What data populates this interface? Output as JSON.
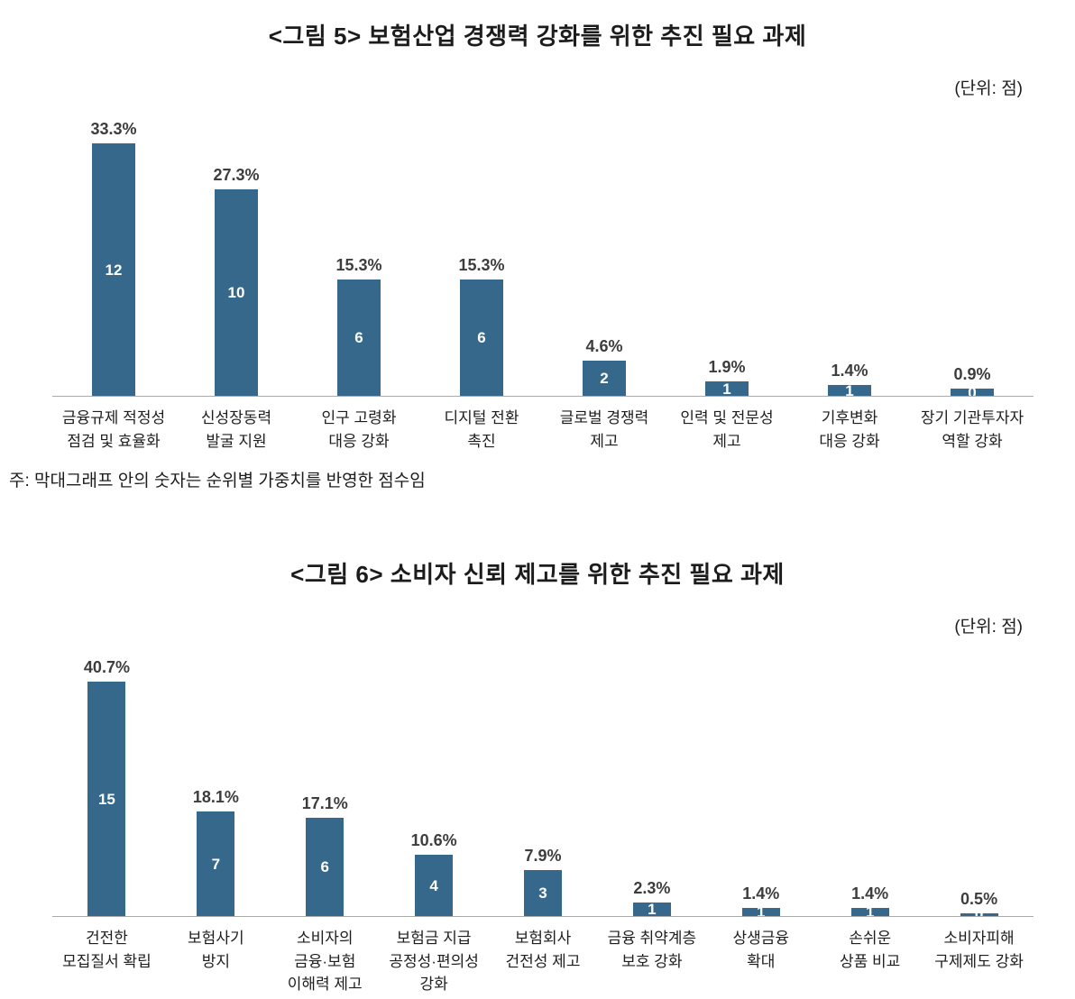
{
  "colors": {
    "bar": "#36688c",
    "axis": "#aaaaaa"
  },
  "chart_data": [
    {
      "type": "bar",
      "title": "<그림 5> 보험산업 경쟁력 강화를 위한 추진 필요 과제",
      "unit_label": "(단위: 점)",
      "note": "주: 막대그래프 안의 숫자는 순위별 가중치를 반영한 점수임",
      "xlabel": "",
      "ylabel": "",
      "grid": false,
      "legend": false,
      "value_unit": "percent",
      "bars": [
        {
          "category": "금융규제 적정성\n점검 및 효율화",
          "percent": 33.3,
          "pct_label": "33.3%",
          "score": "12"
        },
        {
          "category": "신성장동력\n발굴 지원",
          "percent": 27.3,
          "pct_label": "27.3%",
          "score": "10"
        },
        {
          "category": "인구 고령화\n대응 강화",
          "percent": 15.3,
          "pct_label": "15.3%",
          "score": "6"
        },
        {
          "category": "디지털 전환\n촉진",
          "percent": 15.3,
          "pct_label": "15.3%",
          "score": "6"
        },
        {
          "category": "글로벌 경쟁력\n제고",
          "percent": 4.6,
          "pct_label": "4.6%",
          "score": "2"
        },
        {
          "category": "인력 및 전문성\n제고",
          "percent": 1.9,
          "pct_label": "1.9%",
          "score": "1"
        },
        {
          "category": "기후변화\n대응 강화",
          "percent": 1.4,
          "pct_label": "1.4%",
          "score": "1"
        },
        {
          "category": "장기 기관투자자\n역할 강화",
          "percent": 0.9,
          "pct_label": "0.9%",
          "score": "0"
        }
      ]
    },
    {
      "type": "bar",
      "title": "<그림 6> 소비자 신뢰 제고를 위한 추진 필요 과제",
      "unit_label": "(단위: 점)",
      "xlabel": "",
      "ylabel": "",
      "grid": false,
      "legend": false,
      "value_unit": "percent",
      "bars": [
        {
          "category": "건전한\n모집질서 확립",
          "percent": 40.7,
          "pct_label": "40.7%",
          "score": "15"
        },
        {
          "category": "보험사기\n방지",
          "percent": 18.1,
          "pct_label": "18.1%",
          "score": "7"
        },
        {
          "category": "소비자의\n금융·보험\n이해력 제고",
          "percent": 17.1,
          "pct_label": "17.1%",
          "score": "6"
        },
        {
          "category": "보험금 지급\n공정성·편의성\n강화",
          "percent": 10.6,
          "pct_label": "10.6%",
          "score": "4"
        },
        {
          "category": "보험회사\n건전성 제고",
          "percent": 7.9,
          "pct_label": "7.9%",
          "score": "3"
        },
        {
          "category": "금융 취약계층\n보호 강화",
          "percent": 2.3,
          "pct_label": "2.3%",
          "score": "1"
        },
        {
          "category": "상생금융\n확대",
          "percent": 1.4,
          "pct_label": "1.4%",
          "score": "1"
        },
        {
          "category": "손쉬운\n상품 비교",
          "percent": 1.4,
          "pct_label": "1.4%",
          "score": "1"
        },
        {
          "category": "소비자피해\n구제제도 강화",
          "percent": 0.5,
          "pct_label": "0.5%",
          "score": "0"
        }
      ]
    }
  ]
}
